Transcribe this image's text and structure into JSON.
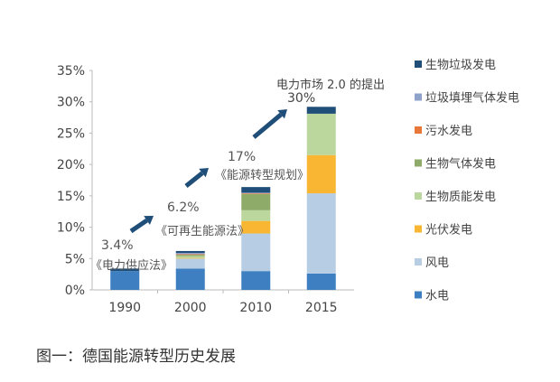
{
  "chart_data": {
    "type": "bar",
    "stacked": true,
    "categories": [
      "1990",
      "2000",
      "2010",
      "2015"
    ],
    "ylim": [
      0,
      35
    ],
    "yticks": [
      "0%",
      "5%",
      "10%",
      "15%",
      "20%",
      "25%",
      "30%",
      "35%"
    ],
    "series": [
      {
        "name": "水电",
        "color": "#3d7fc1",
        "values": [
          3.0,
          3.4,
          3.0,
          2.6
        ]
      },
      {
        "name": "风电",
        "color": "#b7cde4",
        "values": [
          0.0,
          1.6,
          6.0,
          12.8
        ]
      },
      {
        "name": "光伏发电",
        "color": "#f9b632",
        "values": [
          0.0,
          0.1,
          2.0,
          6.1
        ]
      },
      {
        "name": "生物质能发电",
        "color": "#bcd79e",
        "values": [
          0.0,
          0.3,
          1.7,
          6.6
        ]
      },
      {
        "name": "生物气体发电",
        "color": "#8fab6a",
        "values": [
          0.0,
          0.2,
          2.6,
          0.0
        ]
      },
      {
        "name": "污水发电",
        "color": "#e8783a",
        "values": [
          0.0,
          0.1,
          0.1,
          0.0
        ]
      },
      {
        "name": "垃圾填埋气体发电",
        "color": "#8fa2c9",
        "values": [
          0.0,
          0.2,
          0.1,
          0.0
        ]
      },
      {
        "name": "生物垃圾发电",
        "color": "#1f4e79",
        "values": [
          0.4,
          0.3,
          0.9,
          1.1
        ]
      }
    ],
    "legend_placement": "right",
    "annotations": [
      {
        "value": "3.4%",
        "label": "《电力供应法》"
      },
      {
        "value": "6.2%",
        "label": "《可再生能源法》"
      },
      {
        "value": "17%",
        "label": "《能源转型规划》"
      },
      {
        "value": "30%",
        "label": "电力市场 2.0 的提出"
      }
    ],
    "arrow_color": "#1f4e79",
    "caption": "图一：德国能源转型历史发展"
  }
}
